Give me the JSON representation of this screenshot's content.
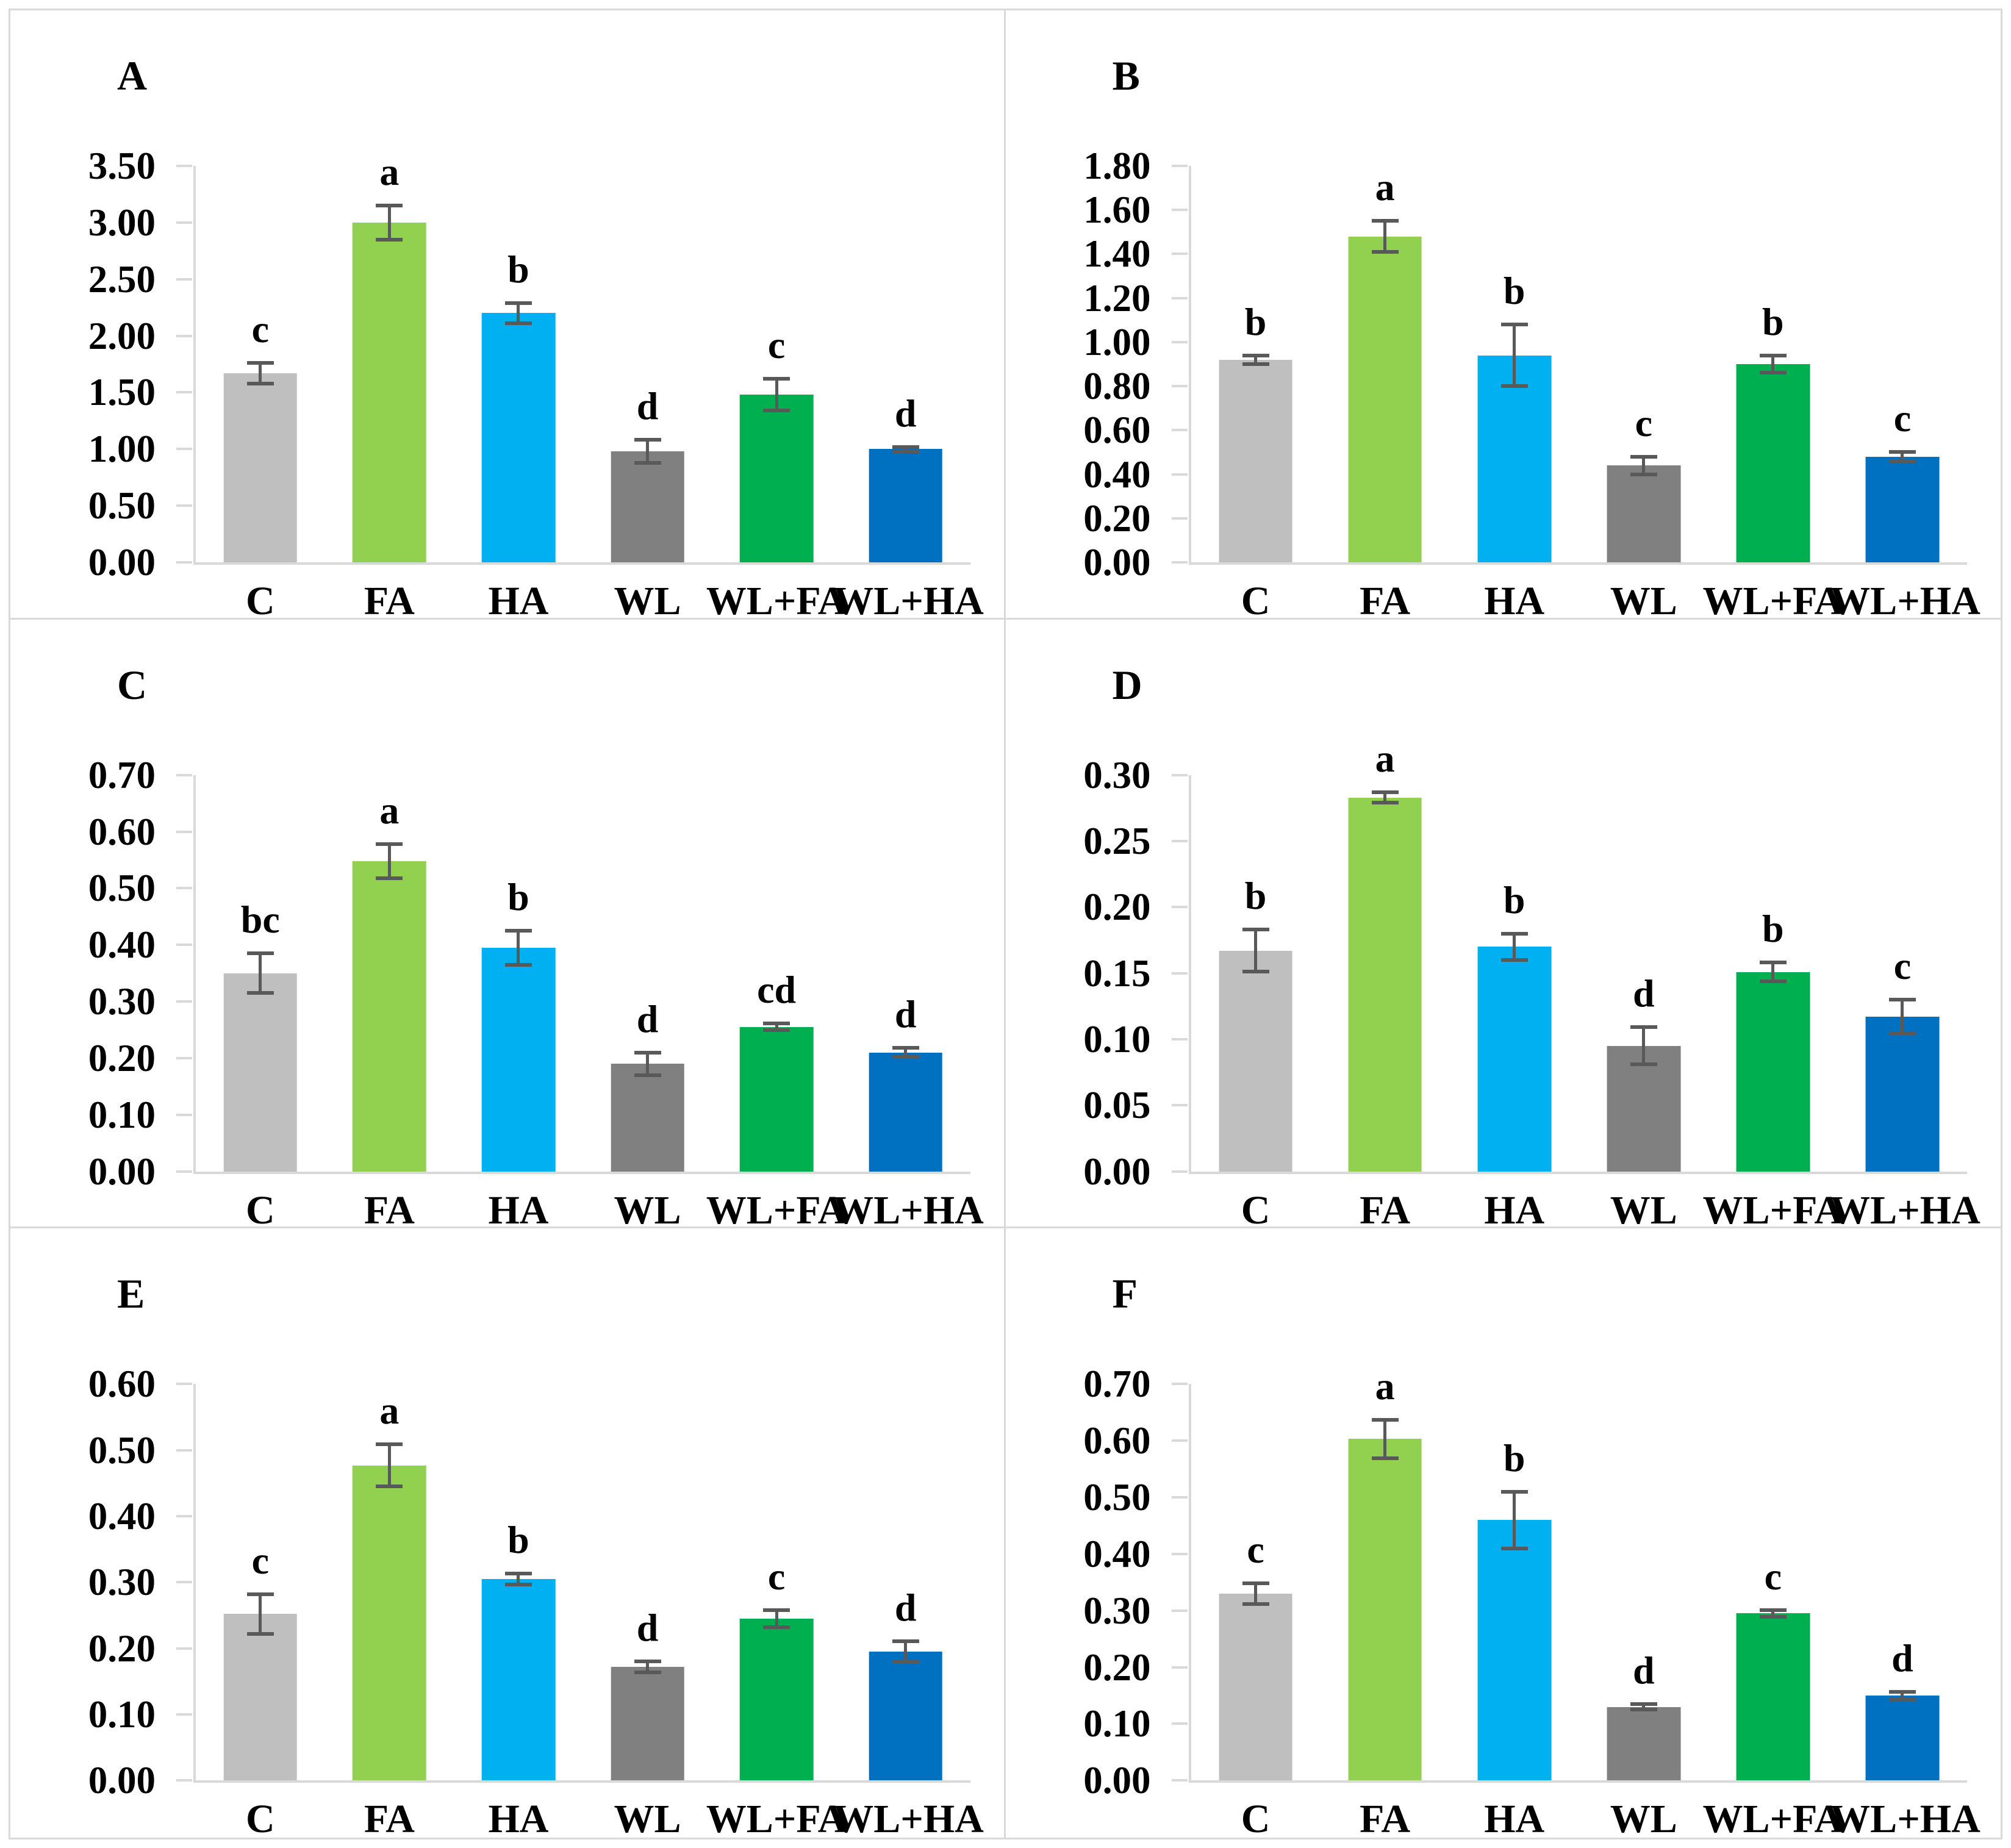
{
  "figure": {
    "background": "#ffffff",
    "border_color": "#d9d9d9",
    "axis_color": "#d9d9d9",
    "error_bar_color": "#595959",
    "text_color": "#000000"
  },
  "categories": [
    "C",
    "FA",
    "HA",
    "WL",
    "WL+FA",
    "WL+HA"
  ],
  "bar_colors": [
    "#bfbfbf",
    "#92d050",
    "#00b0f0",
    "#808080",
    "#00b050",
    "#0070c0"
  ],
  "chart_data": [
    {
      "type": "bar",
      "panel_label": "A",
      "categories": [
        "C",
        "FA",
        "HA",
        "WL",
        "WL+FA",
        "WL+HA"
      ],
      "values": [
        1.67,
        3.0,
        2.2,
        0.98,
        1.48,
        1.0
      ],
      "errors": [
        0.09,
        0.15,
        0.09,
        0.1,
        0.14,
        0.02
      ],
      "sig_letters": [
        "c",
        "a",
        "b",
        "d",
        "c",
        "d"
      ],
      "ylim": [
        0,
        3.5
      ],
      "ytick_labels": [
        "3.50",
        "3.00",
        "2.50",
        "2.00",
        "1.50",
        "1.00",
        "0.50",
        "0.00"
      ],
      "grid": false,
      "legend": "none"
    },
    {
      "type": "bar",
      "panel_label": "B",
      "categories": [
        "C",
        "FA",
        "HA",
        "WL",
        "WL+FA",
        "WL+HA"
      ],
      "values": [
        0.92,
        1.48,
        0.94,
        0.44,
        0.9,
        0.48
      ],
      "errors": [
        0.02,
        0.07,
        0.14,
        0.04,
        0.04,
        0.02
      ],
      "sig_letters": [
        "b",
        "a",
        "b",
        "c",
        "b",
        "c"
      ],
      "ylim": [
        0,
        1.8
      ],
      "ytick_labels": [
        "1.80",
        "1.60",
        "1.40",
        "1.20",
        "1.00",
        "0.80",
        "0.60",
        "0.40",
        "0.20",
        "0.00"
      ],
      "grid": false,
      "legend": "none"
    },
    {
      "type": "bar",
      "panel_label": "C",
      "categories": [
        "C",
        "FA",
        "HA",
        "WL",
        "WL+FA",
        "WL+HA"
      ],
      "values": [
        0.35,
        0.548,
        0.395,
        0.19,
        0.255,
        0.21
      ],
      "errors": [
        0.035,
        0.03,
        0.03,
        0.02,
        0.006,
        0.008
      ],
      "sig_letters": [
        "bc",
        "a",
        "b",
        "d",
        "cd",
        "d"
      ],
      "ylim": [
        0,
        0.7
      ],
      "ytick_labels": [
        "0.70",
        "0.60",
        "0.50",
        "0.40",
        "0.30",
        "0.20",
        "0.10",
        "0.00"
      ],
      "grid": false,
      "legend": "none"
    },
    {
      "type": "bar",
      "panel_label": "D",
      "categories": [
        "C",
        "FA",
        "HA",
        "WL",
        "WL+FA",
        "WL+HA"
      ],
      "values": [
        0.167,
        0.283,
        0.17,
        0.095,
        0.151,
        0.117
      ],
      "errors": [
        0.016,
        0.004,
        0.01,
        0.014,
        0.007,
        0.013
      ],
      "sig_letters": [
        "b",
        "a",
        "b",
        "d",
        "b",
        "c"
      ],
      "ylim": [
        0,
        0.3
      ],
      "ytick_labels": [
        "0.30",
        "0.25",
        "0.20",
        "0.15",
        "0.10",
        "0.05",
        "0.00"
      ],
      "grid": false,
      "legend": "none"
    },
    {
      "type": "bar",
      "panel_label": "E",
      "categories": [
        "C",
        "FA",
        "HA",
        "WL",
        "WL+FA",
        "WL+HA"
      ],
      "values": [
        0.252,
        0.477,
        0.305,
        0.172,
        0.245,
        0.195
      ],
      "errors": [
        0.03,
        0.032,
        0.008,
        0.008,
        0.013,
        0.016
      ],
      "sig_letters": [
        "c",
        "a",
        "b",
        "d",
        "c",
        "d"
      ],
      "ylim": [
        0,
        0.6
      ],
      "ytick_labels": [
        "0.60",
        "0.50",
        "0.40",
        "0.30",
        "0.20",
        "0.10",
        "0.00"
      ],
      "grid": false,
      "legend": "none"
    },
    {
      "type": "bar",
      "panel_label": "F",
      "categories": [
        "C",
        "FA",
        "HA",
        "WL",
        "WL+FA",
        "WL+HA"
      ],
      "values": [
        0.33,
        0.603,
        0.46,
        0.13,
        0.295,
        0.15
      ],
      "errors": [
        0.018,
        0.034,
        0.05,
        0.005,
        0.006,
        0.006
      ],
      "sig_letters": [
        "c",
        "a",
        "b",
        "d",
        "c",
        "d"
      ],
      "ylim": [
        0,
        0.7
      ],
      "ytick_labels": [
        "0.70",
        "0.60",
        "0.50",
        "0.40",
        "0.30",
        "0.20",
        "0.10",
        "0.00"
      ],
      "grid": false,
      "legend": "none"
    }
  ]
}
